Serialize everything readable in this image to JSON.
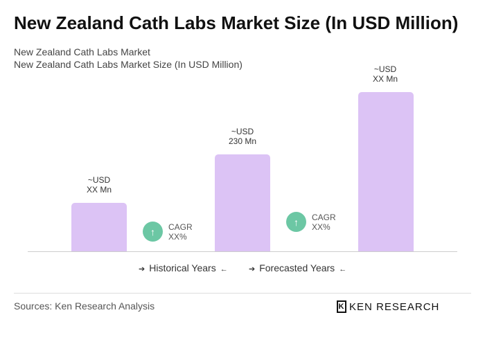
{
  "title": "New Zealand Cath Labs Market Size (In USD Million)",
  "subtitle1": "New Zealand Cath Labs Market",
  "subtitle2": "New Zealand Cath Labs Market Size (In USD Million)",
  "chart_data": {
    "type": "bar",
    "categories": [
      "",
      "",
      ""
    ],
    "values": [
      null,
      230,
      null
    ],
    "data_labels": [
      [
        "~USD",
        "XX Mn"
      ],
      [
        "~USD",
        "230 Mn"
      ],
      [
        "~USD",
        "XX Mn"
      ]
    ],
    "cagr": [
      [
        "CAGR",
        "XX%"
      ],
      [
        "CAGR",
        "XX%"
      ]
    ],
    "legend": [
      "Historical Years",
      "Forecasted Years"
    ],
    "bar_color": "#dcc3f5",
    "cagr_color": "#6cc7a4"
  },
  "source": "Sources: Ken Research Analysis",
  "logo": "KEN RESEARCH"
}
